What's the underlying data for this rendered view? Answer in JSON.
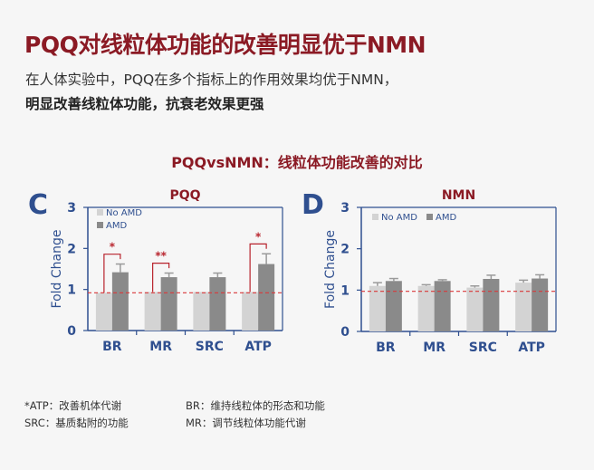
{
  "header": {
    "title": "PQQ对线粒体功能的改善明显优于NMN",
    "subtitle_line1": "在人体实验中，PQQ在多个指标上的作用效果均优于NMN，",
    "subtitle_line2": "明显改善线粒体功能，抗衰老效果更强"
  },
  "comparison_title": "PQQvsNMN：线粒体功能改善的对比",
  "colors": {
    "no_amd": "#d3d3d3",
    "amd": "#8a8a8a",
    "axis": "#2f4f8f",
    "accent": "#8b1a24",
    "reference_line": "#d9383a"
  },
  "chart_data": [
    {
      "type": "bar",
      "panel_label": "C",
      "title": "PQQ",
      "ylabel": "Fold Change",
      "ylim": [
        0,
        3
      ],
      "yticks": [
        "0",
        "1",
        "2",
        "3"
      ],
      "categories": [
        "BR",
        "MR",
        "SRC",
        "ATP"
      ],
      "legend": "top-left",
      "reference_line": 0.92,
      "series": [
        {
          "name": "No AMD",
          "values": [
            0.92,
            0.94,
            0.94,
            0.94
          ],
          "errors": [
            0,
            0,
            0,
            0
          ]
        },
        {
          "name": "AMD",
          "values": [
            1.42,
            1.3,
            1.3,
            1.62
          ],
          "errors": [
            0.2,
            0.1,
            0.1,
            0.25
          ]
        }
      ],
      "significance": [
        {
          "category": "BR",
          "label": "*"
        },
        {
          "category": "MR",
          "label": "**"
        },
        {
          "category": "ATP",
          "label": "*"
        }
      ]
    },
    {
      "type": "bar",
      "panel_label": "D",
      "title": "NMN",
      "ylabel": "Fold Change",
      "ylim": [
        0,
        3
      ],
      "yticks": [
        "0",
        "1",
        "2",
        "3"
      ],
      "categories": [
        "BR",
        "MR",
        "SRC",
        "ATP"
      ],
      "legend": "top-left",
      "reference_line": 0.97,
      "series": [
        {
          "name": "No AMD",
          "values": [
            1.1,
            1.1,
            1.06,
            1.18
          ],
          "errors": [
            0.08,
            0.03,
            0.04,
            0.06
          ]
        },
        {
          "name": "AMD",
          "values": [
            1.22,
            1.22,
            1.27,
            1.28
          ],
          "errors": [
            0.06,
            0.03,
            0.09,
            0.09
          ]
        }
      ],
      "significance": []
    }
  ],
  "notes": [
    "*ATP：改善机体代谢",
    "BR：维持线粒体的形态和功能",
    " SRC：基质黏附的功能",
    "MR：调节线粒体功能代谢"
  ]
}
